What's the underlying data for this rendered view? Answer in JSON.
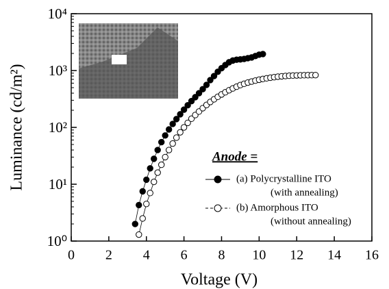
{
  "chart_data": {
    "type": "scatter",
    "xlabel": "Voltage (V)",
    "ylabel": "Luminance (cd/m²)",
    "xlim": [
      0,
      16
    ],
    "xticks": [
      0,
      2,
      4,
      6,
      8,
      10,
      12,
      14,
      16
    ],
    "ylim": [
      1,
      10000
    ],
    "log_y": true,
    "yticks": [
      {
        "value": 1,
        "label": "10⁰"
      },
      {
        "value": 10,
        "label": "10¹"
      },
      {
        "value": 100,
        "label": "10²"
      },
      {
        "value": 1000,
        "label": "10³"
      },
      {
        "value": 10000,
        "label": "10⁴"
      }
    ],
    "legend_title": "Anode =",
    "series": [
      {
        "name": "(a) Polycrystalline ITO",
        "note": "(with annealing)",
        "color": "#000000",
        "filled": true,
        "x": [
          3.4,
          3.6,
          3.8,
          4.0,
          4.2,
          4.4,
          4.6,
          4.8,
          5.0,
          5.2,
          5.4,
          5.6,
          5.8,
          6.0,
          6.2,
          6.4,
          6.6,
          6.8,
          7.0,
          7.2,
          7.4,
          7.6,
          7.8,
          8.0,
          8.2,
          8.4,
          8.6,
          8.8,
          9.0,
          9.2,
          9.4,
          9.6,
          9.8,
          10.0,
          10.2
        ],
        "values": [
          2,
          4.3,
          7.5,
          12,
          19,
          28,
          40,
          55,
          72,
          92,
          115,
          140,
          170,
          205,
          245,
          290,
          340,
          400,
          470,
          560,
          680,
          800,
          950,
          1100,
          1250,
          1400,
          1500,
          1550,
          1570,
          1600,
          1650,
          1700,
          1800,
          1900,
          1950
        ]
      },
      {
        "name": "(b) Amorphous ITO",
        "note": "(without annealing)",
        "color": "#000000",
        "filled": false,
        "x": [
          3.6,
          3.8,
          4.0,
          4.2,
          4.4,
          4.6,
          4.8,
          5.0,
          5.2,
          5.4,
          5.6,
          5.8,
          6.0,
          6.2,
          6.4,
          6.6,
          6.8,
          7.0,
          7.2,
          7.4,
          7.6,
          7.8,
          8.0,
          8.2,
          8.4,
          8.6,
          8.8,
          9.0,
          9.2,
          9.4,
          9.6,
          9.8,
          10.0,
          10.2,
          10.4,
          10.6,
          10.8,
          11.0,
          11.2,
          11.4,
          11.6,
          11.8,
          12.0,
          12.2,
          12.4,
          12.6,
          12.8,
          13.0
        ],
        "values": [
          1.3,
          2.5,
          4.5,
          7,
          11,
          16,
          22,
          30,
          40,
          52,
          66,
          82,
          100,
          120,
          142,
          165,
          190,
          218,
          248,
          280,
          312,
          345,
          380,
          415,
          450,
          485,
          520,
          555,
          585,
          615,
          640,
          665,
          690,
          710,
          730,
          748,
          765,
          780,
          792,
          802,
          810,
          816,
          820,
          824,
          827,
          829,
          830,
          831
        ]
      }
    ]
  }
}
